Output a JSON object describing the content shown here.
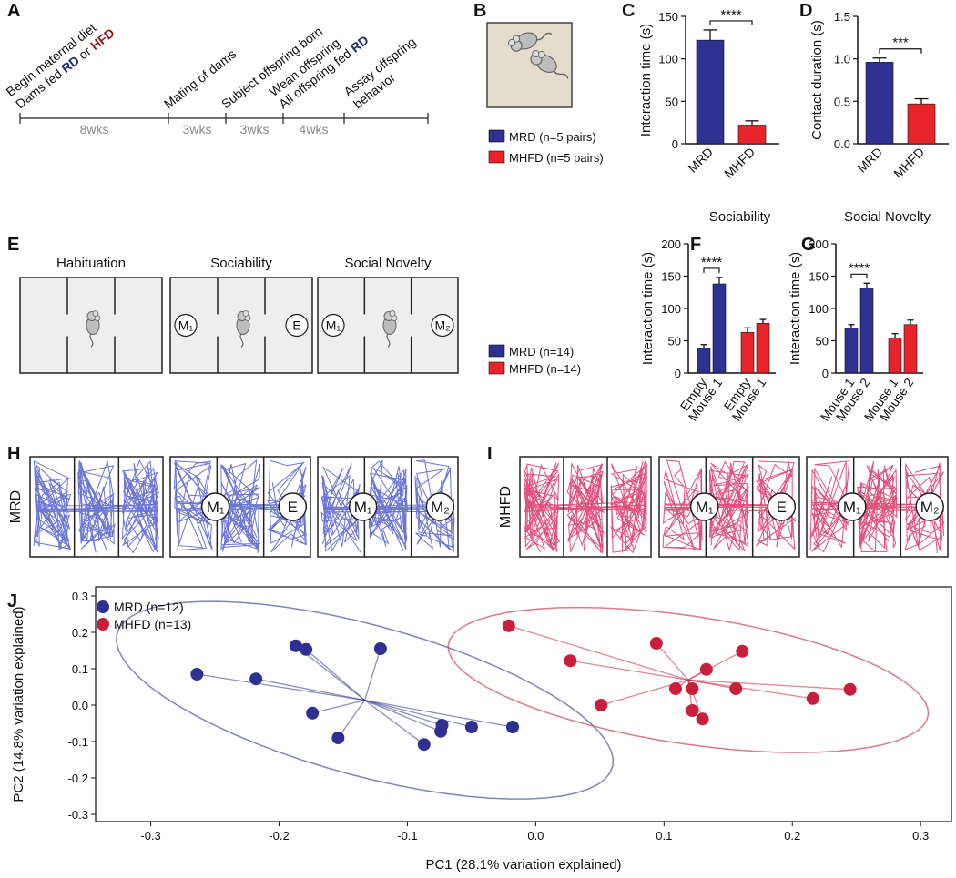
{
  "panel_labels": [
    "A",
    "B",
    "C",
    "D",
    "E",
    "F",
    "G",
    "H",
    "I",
    "J"
  ],
  "timeline": {
    "events": [
      {
        "lines": [
          [
            "Begin maternal diet"
          ],
          [
            "Dams fed ",
            {
              "text": "RD",
              "color": "#1f2a6b"
            },
            " or ",
            {
              "text": "HFD",
              "color": "#8a1c24"
            }
          ]
        ]
      },
      {
        "lines": [
          [
            "Mating of dams"
          ]
        ]
      },
      {
        "lines": [
          [
            "Subject offspring born"
          ]
        ]
      },
      {
        "lines": [
          [
            "Wean offspring"
          ],
          [
            "All offspring fed ",
            {
              "text": "RD",
              "color": "#1f2a6b"
            }
          ]
        ]
      },
      {
        "lines": [
          [
            "Assay offspring"
          ],
          [
            "behavior"
          ]
        ]
      }
    ],
    "durations": [
      "8wks",
      "3wks",
      "3wks",
      "4wks"
    ]
  },
  "arenas": {
    "titles": [
      "Habituation",
      "Sociability",
      "Social Novelty"
    ],
    "stimuli": [
      [],
      [
        "M₁",
        "E"
      ],
      [
        "M₁",
        "M₂"
      ]
    ]
  },
  "tracks": [
    {
      "group": "MRD",
      "color": "#4653c9",
      "stimuli": [
        [],
        [
          "M₁",
          "E"
        ],
        [
          "M₁",
          "M₂"
        ]
      ]
    },
    {
      "group": "MHFD",
      "color": "#d7245c",
      "stimuli": [
        [],
        [
          "M₁",
          "E"
        ],
        [
          "M₁",
          "M₂"
        ]
      ]
    }
  ],
  "chart_data": [
    {
      "type": "bar",
      "ylabel": "Interaction time (s)",
      "categories": [
        "MRD",
        "MHFD"
      ],
      "values": [
        122,
        22
      ],
      "errors": [
        12,
        5
      ],
      "colors": [
        "#2e3192",
        "#e7242a"
      ],
      "ylim": [
        0,
        150
      ],
      "yticks": [
        0,
        50,
        100,
        150
      ],
      "annotation": "****",
      "legend": [
        "MRD (n=5 pairs)",
        "MHFD (n=5 pairs)"
      ]
    },
    {
      "type": "bar",
      "ylabel": "Contact duration (s)",
      "categories": [
        "MRD",
        "MHFD"
      ],
      "values": [
        0.96,
        0.47
      ],
      "errors": [
        0.05,
        0.06
      ],
      "colors": [
        "#2e3192",
        "#e7242a"
      ],
      "ylim": [
        0,
        1.5
      ],
      "yticks": [
        {
          "value": 0,
          "label": "0.0"
        },
        0.5,
        {
          "value": 1,
          "label": "1.0"
        },
        1.5
      ],
      "annotation": "***"
    },
    {
      "type": "bar",
      "title": "Sociability",
      "ylabel": "Interaction time (s)",
      "categories": [
        "Empty",
        "Mouse 1",
        "Empty",
        "Mouse 1"
      ],
      "values": [
        39,
        138,
        63,
        77
      ],
      "errors": [
        5,
        10,
        7,
        6
      ],
      "colors": [
        "#2e3192",
        "#2e3192",
        "#e7242a",
        "#e7242a"
      ],
      "ylim": [
        0,
        200
      ],
      "yticks": [
        0,
        50,
        100,
        150,
        200
      ],
      "annotation": "****",
      "legend": [
        "MRD (n=14)",
        "MHFD (n=14)"
      ]
    },
    {
      "type": "bar",
      "title": "Social Novelty",
      "ylabel": "Interaction time (s)",
      "categories": [
        "Mouse 1",
        "Mouse 2",
        "Mouse 1",
        "Mouse 2"
      ],
      "values": [
        70,
        132,
        54,
        75
      ],
      "errors": [
        5,
        7,
        7,
        7
      ],
      "colors": [
        "#2e3192",
        "#2e3192",
        "#e7242a",
        "#e7242a"
      ],
      "ylim": [
        0,
        200
      ],
      "yticks": [
        0,
        50,
        100,
        150,
        200
      ],
      "annotation": "****"
    },
    {
      "type": "scatter",
      "xlabel": "PC1 (28.1% variation explained)",
      "ylabel": "PC2 (14.8% variation explained)",
      "xlim": [
        -0.343,
        0.324
      ],
      "ylim": [
        -0.32,
        0.325
      ],
      "xticks": [
        -0.3,
        -0.2,
        -0.1,
        {
          "value": 0,
          "label": "0.0"
        },
        0.1,
        0.2,
        0.3
      ],
      "yticks": [
        -0.3,
        -0.2,
        -0.1,
        {
          "value": 0,
          "label": "0.0"
        },
        0.1,
        0.2,
        0.3
      ],
      "series": [
        {
          "name": "MRD (n=12)",
          "color": "#2e3192",
          "x": [
            -0.264,
            -0.218,
            -0.187,
            -0.179,
            -0.174,
            -0.154,
            -0.121,
            -0.087,
            -0.074,
            -0.073,
            -0.05,
            -0.018
          ],
          "y": [
            0.085,
            0.072,
            0.163,
            0.153,
            -0.022,
            -0.09,
            0.155,
            -0.108,
            -0.072,
            -0.055,
            -0.06,
            -0.06
          ]
        },
        {
          "name": "MHFD (n=13)",
          "color": "#c8203a",
          "x": [
            -0.021,
            0.027,
            0.051,
            0.094,
            0.109,
            0.122,
            0.133,
            0.122,
            0.13,
            0.156,
            0.161,
            0.216,
            0.245
          ],
          "y": [
            0.218,
            0.122,
            0.0,
            0.17,
            0.045,
            0.045,
            0.098,
            -0.015,
            -0.038,
            0.045,
            0.148,
            0.018,
            0.043
          ]
        }
      ]
    }
  ]
}
